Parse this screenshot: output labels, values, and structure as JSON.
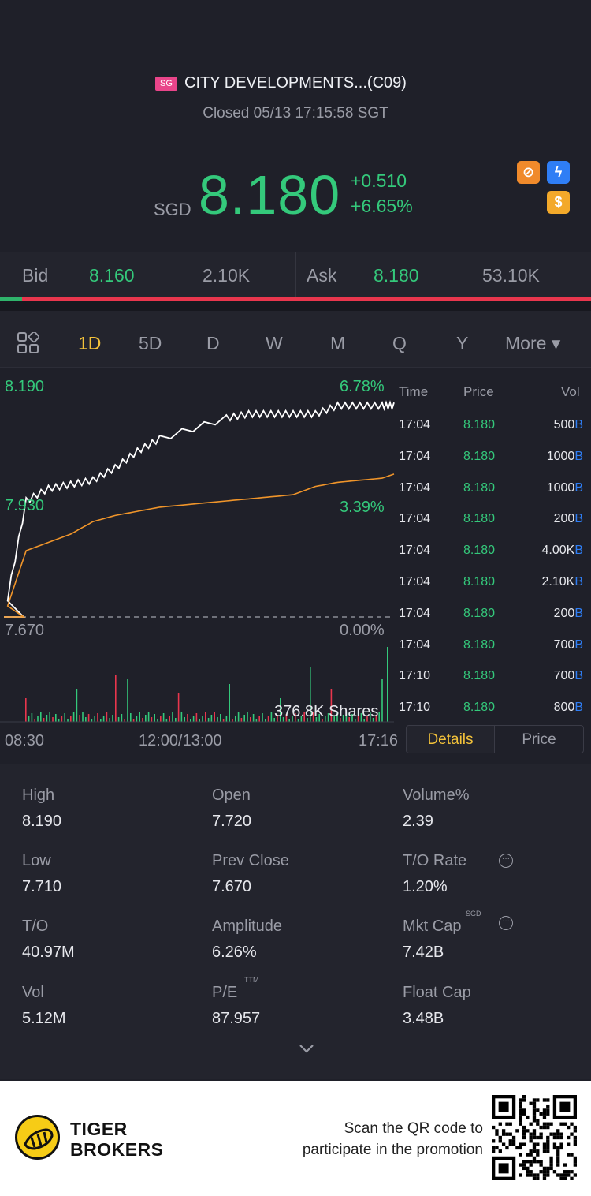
{
  "header": {
    "market_badge": "SG",
    "stock_name": "CITY DEVELOPMENTS...(C09)",
    "status": "Closed 05/13 17:15:58 SGT",
    "currency": "SGD",
    "price": "8.180",
    "change": "+0.510",
    "change_pct": "+6.65%",
    "icons": [
      "no-short-icon",
      "lightning-icon",
      "dollar-icon"
    ],
    "icon_glyphs": {
      "no_short": "⊘",
      "lightning": "ϟ",
      "dollar": "$"
    }
  },
  "bidask": {
    "bid_label": "Bid",
    "bid_price": "8.160",
    "bid_size": "2.10K",
    "ask_label": "Ask",
    "ask_price": "8.180",
    "ask_size": "53.10K",
    "bid_share": 0.037
  },
  "tabs": {
    "grid_icon": "grid-icon",
    "items": [
      "1D",
      "5D",
      "D",
      "W",
      "M",
      "Q",
      "Y",
      "More ▾"
    ],
    "active": "1D"
  },
  "chart": {
    "y_top": "8.190",
    "y_mid": "7.930",
    "y_bottom": "7.670",
    "pct_top": "6.78%",
    "pct_mid": "3.39%",
    "pct_bottom": "0.00%",
    "volume_label": "376.8K Shares",
    "x_start": "08:30",
    "x_mid": "12:00/13:00",
    "x_end": "17:16"
  },
  "chart_data": {
    "type": "line",
    "title": "",
    "x_range": [
      "08:30",
      "17:16"
    ],
    "ylim": [
      7.67,
      8.19
    ],
    "series": [
      {
        "name": "",
        "color": "#ffffff",
        "x": [
          "08:30",
          "09:00",
          "09:30",
          "10:00",
          "10:30",
          "11:00",
          "11:30",
          "12:00",
          "13:30",
          "14:00",
          "14:30",
          "15:00",
          "15:30",
          "16:00",
          "16:30",
          "17:00",
          "17:16"
        ],
        "values": [
          7.67,
          7.95,
          7.98,
          7.99,
          8.0,
          8.03,
          8.07,
          8.1,
          8.15,
          8.16,
          8.16,
          8.16,
          8.16,
          8.18,
          8.18,
          8.18,
          8.18
        ]
      },
      {
        "name": "",
        "color": "#f0952a",
        "x": [
          "08:30",
          "09:00",
          "09:30",
          "10:00",
          "10:30",
          "11:00",
          "11:30",
          "12:00",
          "13:30",
          "14:00",
          "14:30",
          "15:00",
          "15:30",
          "16:00",
          "16:30",
          "17:00",
          "17:16"
        ],
        "values": [
          7.67,
          7.83,
          7.85,
          7.87,
          7.9,
          7.915,
          7.925,
          7.935,
          7.95,
          7.955,
          7.96,
          7.965,
          7.985,
          7.995,
          8.0,
          8.005,
          8.015
        ]
      }
    ],
    "volume_color_up": "#34c97b",
    "volume_color_down": "#e8364d"
  },
  "trades": {
    "headers": [
      "Time",
      "Price",
      "Vol"
    ],
    "rows": [
      {
        "time": "17:04",
        "price": "8.180",
        "vol": "500",
        "suffix": "B"
      },
      {
        "time": "17:04",
        "price": "8.180",
        "vol": "1000",
        "suffix": "B"
      },
      {
        "time": "17:04",
        "price": "8.180",
        "vol": "1000",
        "suffix": "B"
      },
      {
        "time": "17:04",
        "price": "8.180",
        "vol": "200",
        "suffix": "B"
      },
      {
        "time": "17:04",
        "price": "8.180",
        "vol": "4.00K",
        "suffix": "B"
      },
      {
        "time": "17:04",
        "price": "8.180",
        "vol": "2.10K",
        "suffix": "B"
      },
      {
        "time": "17:04",
        "price": "8.180",
        "vol": "200",
        "suffix": "B"
      },
      {
        "time": "17:04",
        "price": "8.180",
        "vol": "700",
        "suffix": "B"
      },
      {
        "time": "17:10",
        "price": "8.180",
        "vol": "700",
        "suffix": "B"
      },
      {
        "time": "17:10",
        "price": "8.180",
        "vol": "800",
        "suffix": "B"
      }
    ],
    "details_button": "Details",
    "price_button": "Price"
  },
  "stats": {
    "high_label": "High",
    "high": "8.190",
    "open_label": "Open",
    "open": "7.720",
    "volpct_label": "Volume%",
    "volpct": "2.39",
    "low_label": "Low",
    "low": "7.710",
    "prev_label": "Prev Close",
    "prev": "7.670",
    "tor_label": "T/O Rate",
    "tor": "1.20%",
    "to_label": "T/O",
    "to": "40.97M",
    "amp_label": "Amplitude",
    "amp": "6.26%",
    "mcap_label": "Mkt Cap",
    "mcap_sup": "SGD",
    "mcap": "7.42B",
    "vol_label": "Vol",
    "vol": "5.12M",
    "pe_label": "P/E",
    "pe_sup": "TTM",
    "pe": "87.957",
    "float_label": "Float Cap",
    "float": "3.48B",
    "info_glyph": "···",
    "expand_glyph": "⌄"
  },
  "footer": {
    "brand_line1": "TIGER",
    "brand_line2": "BROKERS",
    "promo_line1": "Scan the QR code to",
    "promo_line2": "participate in the promotion"
  }
}
